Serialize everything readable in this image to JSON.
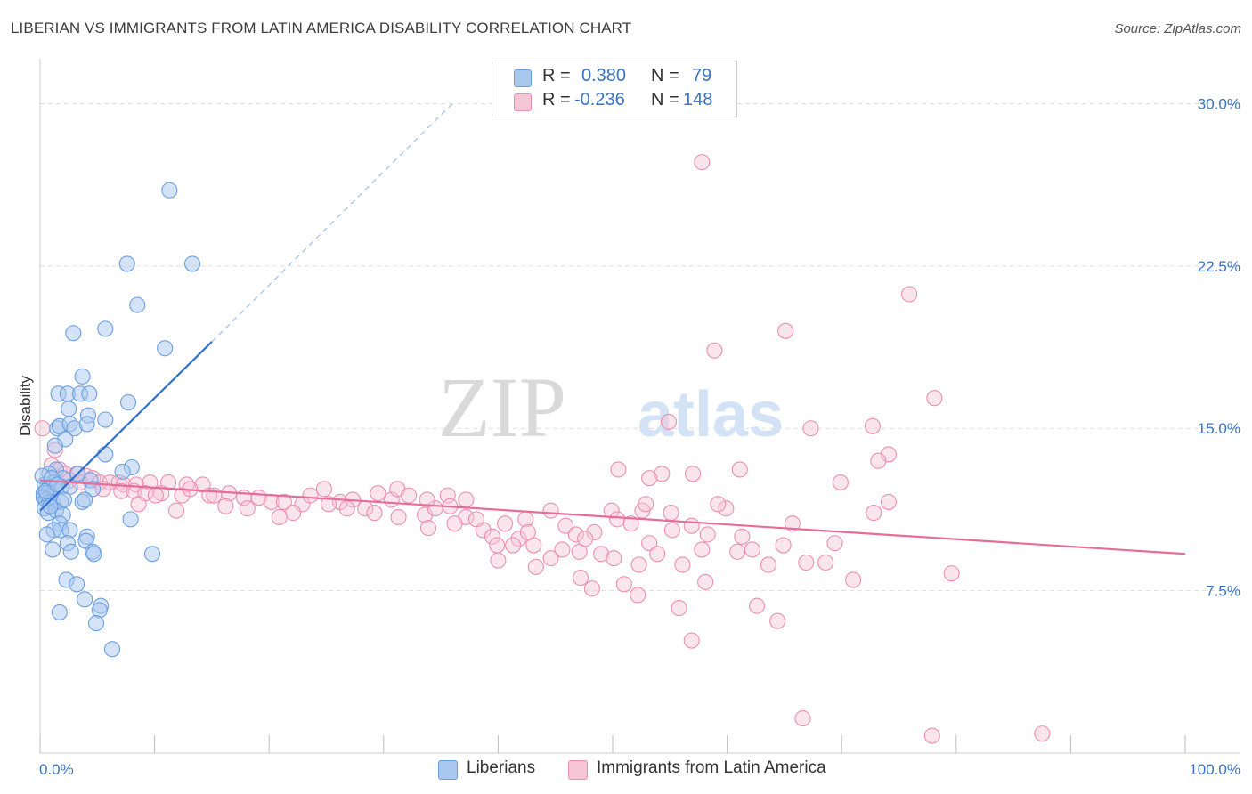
{
  "header": {
    "title": "LIBERIAN VS IMMIGRANTS FROM LATIN AMERICA DISABILITY CORRELATION CHART",
    "source": "Source: ZipAtlas.com"
  },
  "watermark": {
    "zip": "ZIP",
    "atlas": "atlas"
  },
  "legend": {
    "r_label": "R =",
    "n_label": "N =",
    "rows": [
      {
        "series": "Liberians",
        "r": "0.380",
        "n": "79",
        "color": "#6fa3e0"
      },
      {
        "series": "Immigrants from Latin America",
        "r": "-0.236",
        "n": "148",
        "color": "#ef8fb0"
      }
    ]
  },
  "bottom_legend": {
    "items": [
      {
        "label": "Liberians",
        "color": "#6fa3e0"
      },
      {
        "label": "Immigrants from Latin America",
        "color": "#ef8fb0"
      }
    ]
  },
  "colors": {
    "blue_fill": "#a9c8f0",
    "blue_stroke": "#6a9fe0",
    "blue_line": "#2f6fd0",
    "pink_fill": "#f7c6d6",
    "pink_stroke": "#ec8fb0",
    "pink_line": "#e56d98",
    "grid": "#dddddd",
    "axis_label": "#3a73c4"
  },
  "chart_data": {
    "type": "scatter",
    "title": "LIBERIAN VS IMMIGRANTS FROM LATIN AMERICA DISABILITY CORRELATION CHART",
    "xlabel": "",
    "ylabel": "Disability",
    "xlim": [
      0,
      100
    ],
    "ylim": [
      0,
      31.5
    ],
    "x_tick_labels": [
      "0.0%",
      "100.0%"
    ],
    "y_ticks": [
      7.5,
      15.0,
      22.5,
      30.0
    ],
    "y_tick_labels": [
      "7.5%",
      "15.0%",
      "22.5%",
      "30.0%"
    ],
    "grid": true,
    "legend_position": "top-center",
    "series": [
      {
        "name": "Liberians",
        "r": 0.38,
        "n": 79,
        "trend": {
          "x": [
            0,
            15
          ],
          "y": [
            11.2,
            19.0
          ],
          "dashed_to": [
            36,
            30.0
          ]
        },
        "points": [
          [
            11.3,
            26.0
          ],
          [
            7.6,
            22.6
          ],
          [
            13.3,
            22.6
          ],
          [
            8.5,
            20.7
          ],
          [
            2.9,
            19.4
          ],
          [
            5.7,
            19.6
          ],
          [
            10.9,
            18.7
          ],
          [
            3.7,
            17.4
          ],
          [
            1.6,
            16.6
          ],
          [
            2.4,
            16.6
          ],
          [
            3.5,
            16.6
          ],
          [
            4.3,
            16.6
          ],
          [
            7.7,
            16.2
          ],
          [
            2.5,
            15.9
          ],
          [
            4.2,
            15.6
          ],
          [
            5.7,
            15.4
          ],
          [
            1.5,
            15.0
          ],
          [
            1.7,
            15.1
          ],
          [
            2.6,
            15.2
          ],
          [
            3.0,
            15.0
          ],
          [
            4.1,
            15.2
          ],
          [
            2.2,
            14.5
          ],
          [
            1.3,
            14.2
          ],
          [
            5.7,
            13.8
          ],
          [
            8.0,
            13.2
          ],
          [
            7.2,
            13.0
          ],
          [
            1.4,
            13.1
          ],
          [
            0.8,
            12.9
          ],
          [
            2.0,
            12.7
          ],
          [
            4.4,
            12.6
          ],
          [
            0.4,
            12.4
          ],
          [
            0.8,
            12.3
          ],
          [
            1.2,
            12.5
          ],
          [
            1.9,
            12.3
          ],
          [
            2.6,
            12.3
          ],
          [
            4.6,
            12.2
          ],
          [
            0.3,
            12.0
          ],
          [
            0.6,
            12.0
          ],
          [
            0.9,
            11.9
          ],
          [
            0.3,
            11.8
          ],
          [
            0.5,
            11.7
          ],
          [
            0.8,
            11.6
          ],
          [
            1.1,
            11.6
          ],
          [
            1.8,
            11.6
          ],
          [
            2.1,
            11.7
          ],
          [
            3.7,
            11.6
          ],
          [
            3.9,
            11.7
          ],
          [
            0.4,
            11.3
          ],
          [
            0.7,
            11.1
          ],
          [
            1.4,
            11.2
          ],
          [
            2.0,
            11.0
          ],
          [
            7.9,
            10.8
          ],
          [
            1.7,
            10.6
          ],
          [
            1.8,
            10.3
          ],
          [
            2.6,
            10.3
          ],
          [
            1.2,
            10.3
          ],
          [
            0.6,
            10.1
          ],
          [
            4.1,
            10.0
          ],
          [
            4.0,
            9.8
          ],
          [
            2.4,
            9.7
          ],
          [
            1.1,
            9.4
          ],
          [
            2.7,
            9.3
          ],
          [
            4.6,
            9.3
          ],
          [
            4.7,
            9.2
          ],
          [
            9.8,
            9.2
          ],
          [
            2.3,
            8.0
          ],
          [
            3.2,
            7.8
          ],
          [
            3.9,
            7.1
          ],
          [
            5.3,
            6.8
          ],
          [
            5.2,
            6.6
          ],
          [
            1.7,
            6.5
          ],
          [
            4.9,
            6.0
          ],
          [
            6.3,
            4.8
          ],
          [
            0.2,
            12.8
          ],
          [
            0.5,
            12.1
          ],
          [
            1.0,
            12.7
          ],
          [
            1.5,
            12.4
          ],
          [
            0.9,
            11.4
          ],
          [
            3.3,
            12.9
          ]
        ]
      },
      {
        "name": "Immigrants from Latin America",
        "r": -0.236,
        "n": 148,
        "trend": {
          "x": [
            0,
            100
          ],
          "y": [
            12.6,
            9.2
          ]
        },
        "points": [
          [
            57.8,
            27.3
          ],
          [
            75.9,
            21.2
          ],
          [
            65.1,
            19.5
          ],
          [
            58.9,
            18.6
          ],
          [
            78.1,
            16.4
          ],
          [
            54.9,
            15.3
          ],
          [
            67.3,
            15.0
          ],
          [
            72.7,
            15.1
          ],
          [
            74.1,
            13.8
          ],
          [
            73.2,
            13.5
          ],
          [
            50.5,
            13.1
          ],
          [
            54.3,
            12.9
          ],
          [
            57.0,
            12.9
          ],
          [
            61.1,
            13.1
          ],
          [
            69.9,
            12.5
          ],
          [
            53.2,
            12.7
          ],
          [
            0.2,
            15.0
          ],
          [
            1.3,
            14.0
          ],
          [
            1.0,
            13.3
          ],
          [
            1.7,
            13.1
          ],
          [
            2.2,
            12.9
          ],
          [
            3.2,
            12.9
          ],
          [
            4.0,
            12.8
          ],
          [
            4.6,
            12.7
          ],
          [
            2.6,
            12.6
          ],
          [
            3.5,
            12.5
          ],
          [
            5.2,
            12.5
          ],
          [
            6.1,
            12.5
          ],
          [
            6.9,
            12.5
          ],
          [
            7.3,
            12.4
          ],
          [
            8.4,
            12.4
          ],
          [
            9.6,
            12.5
          ],
          [
            11.2,
            12.5
          ],
          [
            12.8,
            12.4
          ],
          [
            14.2,
            12.4
          ],
          [
            5.5,
            12.2
          ],
          [
            7.1,
            12.1
          ],
          [
            8.2,
            12.1
          ],
          [
            9.2,
            12.0
          ],
          [
            10.6,
            12.0
          ],
          [
            12.4,
            11.9
          ],
          [
            14.8,
            11.9
          ],
          [
            15.2,
            11.9
          ],
          [
            16.5,
            12.0
          ],
          [
            17.8,
            11.8
          ],
          [
            19.1,
            11.8
          ],
          [
            20.2,
            11.6
          ],
          [
            21.3,
            11.6
          ],
          [
            22.9,
            11.5
          ],
          [
            23.6,
            11.9
          ],
          [
            24.8,
            12.2
          ],
          [
            26.2,
            11.6
          ],
          [
            27.3,
            11.7
          ],
          [
            28.4,
            11.3
          ],
          [
            29.5,
            12.0
          ],
          [
            30.7,
            11.7
          ],
          [
            31.2,
            12.2
          ],
          [
            32.2,
            11.9
          ],
          [
            33.6,
            11.0
          ],
          [
            34.5,
            11.3
          ],
          [
            35.6,
            11.9
          ],
          [
            37.2,
            10.9
          ],
          [
            38.7,
            10.3
          ],
          [
            39.5,
            10.0
          ],
          [
            40.6,
            10.6
          ],
          [
            41.8,
            9.9
          ],
          [
            42.4,
            10.8
          ],
          [
            43.1,
            9.6
          ],
          [
            44.6,
            11.2
          ],
          [
            45.9,
            10.5
          ],
          [
            46.8,
            10.1
          ],
          [
            47.1,
            9.3
          ],
          [
            48.4,
            10.2
          ],
          [
            49.9,
            11.2
          ],
          [
            50.4,
            10.8
          ],
          [
            51.6,
            10.6
          ],
          [
            52.6,
            11.2
          ],
          [
            53.2,
            9.7
          ],
          [
            55.1,
            11.1
          ],
          [
            56.9,
            10.5
          ],
          [
            58.3,
            10.1
          ],
          [
            59.9,
            11.3
          ],
          [
            61.3,
            10.0
          ],
          [
            62.2,
            9.4
          ],
          [
            63.6,
            8.7
          ],
          [
            65.7,
            10.6
          ],
          [
            66.9,
            8.8
          ],
          [
            68.6,
            8.8
          ],
          [
            69.4,
            9.7
          ],
          [
            71.0,
            8.0
          ],
          [
            72.8,
            11.1
          ],
          [
            74.1,
            11.6
          ],
          [
            79.6,
            8.3
          ],
          [
            13.1,
            12.2
          ],
          [
            18.1,
            11.3
          ],
          [
            16.2,
            11.4
          ],
          [
            22.1,
            11.1
          ],
          [
            25.2,
            11.5
          ],
          [
            29.2,
            11.1
          ],
          [
            31.3,
            10.9
          ],
          [
            33.8,
            11.7
          ],
          [
            35.8,
            11.4
          ],
          [
            36.2,
            10.6
          ],
          [
            38.1,
            10.8
          ],
          [
            39.9,
            9.6
          ],
          [
            41.3,
            9.6
          ],
          [
            43.3,
            8.6
          ],
          [
            45.6,
            9.4
          ],
          [
            47.6,
            9.9
          ],
          [
            49.0,
            9.2
          ],
          [
            50.1,
            9.0
          ],
          [
            52.3,
            8.7
          ],
          [
            53.9,
            9.2
          ],
          [
            56.1,
            8.7
          ],
          [
            57.8,
            9.4
          ],
          [
            59.2,
            11.5
          ],
          [
            60.9,
            9.3
          ],
          [
            62.6,
            6.8
          ],
          [
            64.4,
            6.1
          ],
          [
            11.9,
            11.2
          ],
          [
            10.1,
            11.9
          ],
          [
            8.6,
            11.5
          ],
          [
            20.9,
            10.9
          ],
          [
            26.8,
            11.3
          ],
          [
            33.9,
            10.4
          ],
          [
            40.0,
            8.9
          ],
          [
            44.6,
            9.0
          ],
          [
            47.2,
            8.1
          ],
          [
            48.2,
            7.6
          ],
          [
            51.0,
            7.8
          ],
          [
            52.2,
            7.3
          ],
          [
            55.8,
            6.7
          ],
          [
            56.9,
            5.2
          ],
          [
            64.9,
            9.6
          ],
          [
            66.6,
            1.6
          ],
          [
            77.9,
            0.8
          ],
          [
            87.5,
            0.9
          ],
          [
            37.2,
            11.7
          ],
          [
            42.6,
            10.2
          ],
          [
            52.9,
            11.5
          ],
          [
            55.2,
            10.3
          ],
          [
            58.1,
            7.9
          ]
        ]
      }
    ]
  }
}
